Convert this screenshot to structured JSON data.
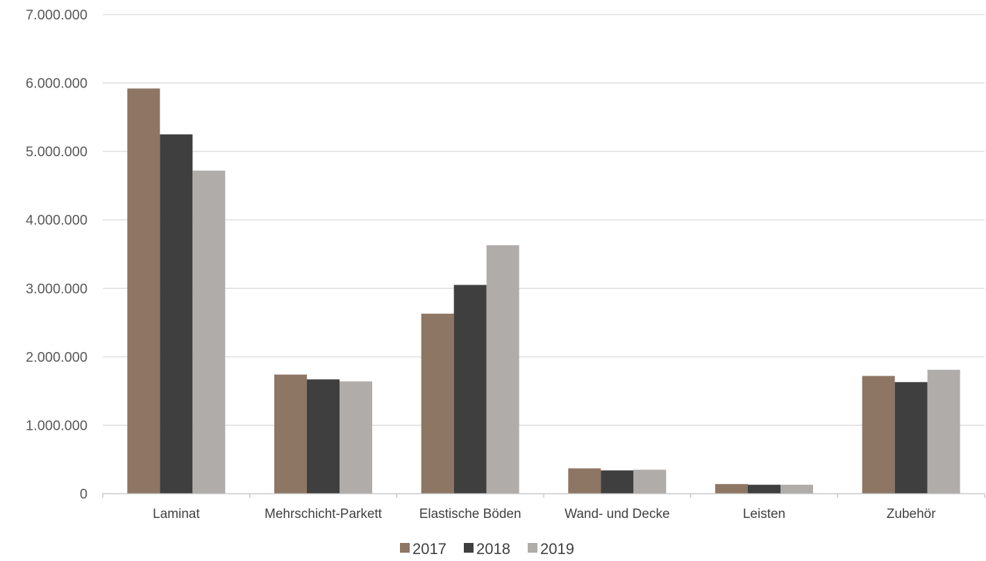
{
  "chart_data": {
    "type": "bar",
    "categories": [
      "Laminat",
      "Mehrschicht-Parkett",
      "Elastische Böden",
      "Wand- und Decke",
      "Leisten",
      "Zubehör"
    ],
    "series": [
      {
        "name": "2017",
        "color": "#8e7664",
        "values": [
          5920000,
          1740000,
          2630000,
          370000,
          140000,
          1720000
        ]
      },
      {
        "name": "2018",
        "color": "#3f3f3f",
        "values": [
          5250000,
          1670000,
          3050000,
          340000,
          130000,
          1630000
        ]
      },
      {
        "name": "2019",
        "color": "#b0acaa",
        "values": [
          4720000,
          1640000,
          3630000,
          350000,
          130000,
          1810000
        ]
      }
    ],
    "ylim": [
      0,
      7000000
    ],
    "yticks": [
      {
        "value": 0,
        "label": "0"
      },
      {
        "value": 1000000,
        "label": "1.000.000"
      },
      {
        "value": 2000000,
        "label": "2.000.000"
      },
      {
        "value": 3000000,
        "label": "3.000.000"
      },
      {
        "value": 4000000,
        "label": "4.000.000"
      },
      {
        "value": 5000000,
        "label": "5.000.000"
      },
      {
        "value": 6000000,
        "label": "6.000.000"
      },
      {
        "value": 7000000,
        "label": "7.000.000"
      }
    ],
    "grid": true,
    "legend_position": "bottom-center",
    "gridline_color": "#d9d9d9",
    "axis_color": "#bfbfbf"
  }
}
